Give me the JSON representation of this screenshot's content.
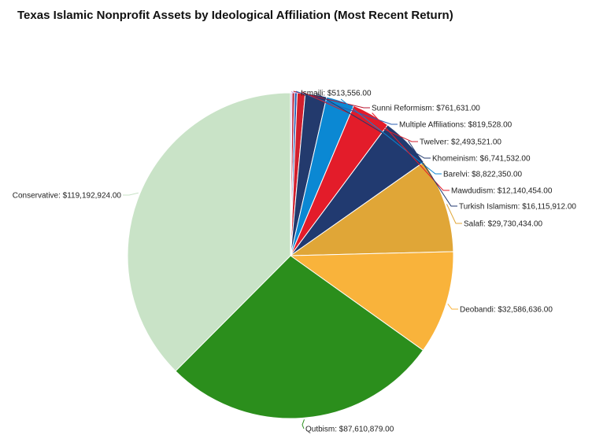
{
  "chart_data": {
    "type": "pie",
    "title": "Texas Islamic Nonprofit Assets by Ideological Affiliation (Most Recent Return)",
    "slices": [
      {
        "label": "Ismaili",
        "value": 513556.0,
        "display": "Ismaili: $513,556.00",
        "color": "#c9aeea"
      },
      {
        "label": "Sunni Reformism",
        "value": 761631.0,
        "display": "Sunni Reformism: $761,631.00",
        "color": "#b9162f"
      },
      {
        "label": "Multiple Affiliations",
        "value": 819528.0,
        "display": "Multiple Affiliations: $819,528.00",
        "color": "#2b5fb3"
      },
      {
        "label": "Twelver",
        "value": 2493521.0,
        "display": "Twelver: $2,493,521.00",
        "color": "#d21f2d"
      },
      {
        "label": "Khomeinism",
        "value": 6741532.0,
        "display": "Khomeinism: $6,741,532.00",
        "color": "#233a6d"
      },
      {
        "label": "Barelvi",
        "value": 8822350.0,
        "display": "Barelvi: $8,822,350.00",
        "color": "#0b88d3"
      },
      {
        "label": "Mawdudism",
        "value": 12140454.0,
        "display": "Mawdudism: $12,140,454.00",
        "color": "#e31c2a"
      },
      {
        "label": "Turkish Islamism",
        "value": 16115912.0,
        "display": "Turkish Islamism: $16,115,912.00",
        "color": "#213a70"
      },
      {
        "label": "Salafi",
        "value": 29730434.0,
        "display": "Salafi: $29,730,434.00",
        "color": "#e0a637"
      },
      {
        "label": "Deobandi",
        "value": 32586636.0,
        "display": "Deobandi: $32,586,636.00",
        "color": "#f9b33b"
      },
      {
        "label": "Qutbism",
        "value": 87610879.0,
        "display": "Qutbism: $87,610,879.00",
        "color": "#2b8e1c"
      },
      {
        "label": "Conservative",
        "value": 119192924.0,
        "display": "Conservative: $119,192,924.00",
        "color": "#c9e3c7"
      }
    ]
  }
}
